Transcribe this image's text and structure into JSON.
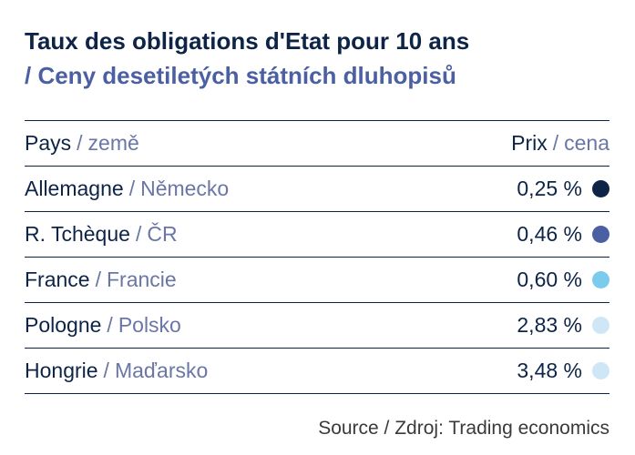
{
  "title": {
    "fr": "Taux des obligations d'Etat pour 10 ans",
    "cz": "/ Ceny desetiletých státních dluhopisů"
  },
  "header": {
    "country_fr": "Pays",
    "country_cz": "země",
    "price_fr": "Prix",
    "price_cz": "cena",
    "separator": "/"
  },
  "chart_data": {
    "type": "table",
    "columns": [
      "Pays / země",
      "Prix / cena"
    ],
    "rows": [
      {
        "country_fr": "Allemagne",
        "country_cz": "Německo",
        "value": 0.25,
        "label": "0,25 %",
        "color": "#0d2447"
      },
      {
        "country_fr": "R. Tchèque",
        "country_cz": "ČR",
        "value": 0.46,
        "label": "0,46 %",
        "color": "#4b5fa3"
      },
      {
        "country_fr": "France",
        "country_cz": "Francie",
        "value": 0.6,
        "label": "0,60 %",
        "color": "#7ccbee"
      },
      {
        "country_fr": "Pologne",
        "country_cz": "Polsko",
        "value": 2.83,
        "label": "2,83 %",
        "color": "#cfe6f7"
      },
      {
        "country_fr": "Hongrie",
        "country_cz": "Maďarsko",
        "value": 3.48,
        "label": "3,48 %",
        "color": "#cfe6f7"
      }
    ]
  },
  "source": "Source / Zdroj: Trading economics"
}
